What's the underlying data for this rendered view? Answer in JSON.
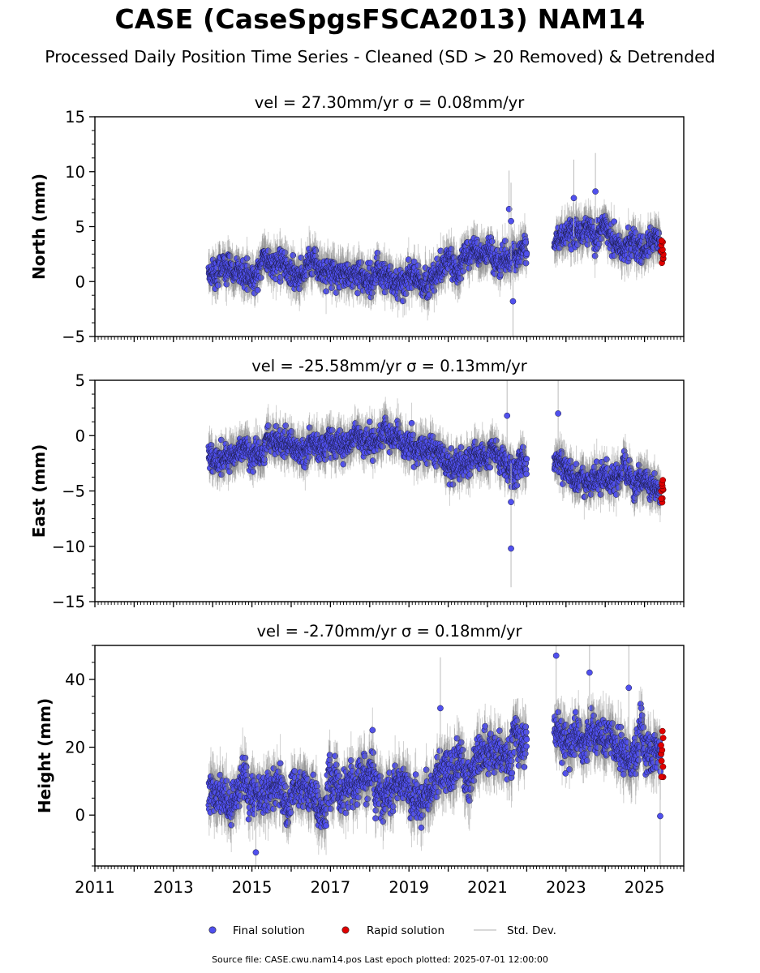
{
  "title": "CASE (CaseSpgsFSCA2013) NAM14",
  "subtitle": "Processed Daily Position Time Series - Cleaned (SD > 20 Removed) & Detrended",
  "footer": "Source file: CASE.cwu.nam14.pos  Last epoch plotted: 2025-07-01 12:00:00",
  "colors": {
    "final": "#5050ee",
    "rapid": "#e00000",
    "stddev": "#bbbbbb"
  },
  "legend": {
    "placement": "bottom-center",
    "items": [
      {
        "label": "Final solution",
        "color": "#5050ee",
        "kind": "marker"
      },
      {
        "label": "Rapid solution",
        "color": "#e00000",
        "kind": "marker"
      },
      {
        "label": "Std. Dev.",
        "color": "#bbbbbb",
        "kind": "line"
      }
    ]
  },
  "chart_data": [
    {
      "type": "scatter",
      "title": "vel = 27.30mm/yr   σ = 0.08mm/yr",
      "ylabel": "North (mm)",
      "xlim": [
        2011,
        2026
      ],
      "ylim": [
        -5,
        15
      ],
      "yticks": [
        -5,
        0,
        5,
        10,
        15
      ],
      "xticks": [
        2011,
        2013,
        2015,
        2017,
        2019,
        2021,
        2023,
        2025
      ],
      "show_xticklabels": false,
      "data_span": [
        2013.9,
        2025.5
      ],
      "gap": [
        2022.0,
        2022.7
      ],
      "trend_x": [
        2013.9,
        2016.5,
        2019.0,
        2019.9,
        2022.0,
        2022.7,
        2023.6,
        2025.5
      ],
      "trend_y": [
        0.8,
        0.5,
        0.4,
        1.5,
        3.0,
        4.0,
        4.5,
        3.0
      ],
      "scatter_sd": 0.9,
      "errbar_sd": 1.4,
      "rapid": {
        "x": 2025.45,
        "y_range": [
          1.6,
          3.8
        ]
      },
      "outliers": [
        [
          2021.55,
          6.6
        ],
        [
          2021.6,
          5.5
        ],
        [
          2021.65,
          -1.8
        ],
        [
          2023.2,
          7.6
        ],
        [
          2023.75,
          8.2
        ]
      ]
    },
    {
      "type": "scatter",
      "title": "vel = -25.58mm/yr   σ = 0.13mm/yr",
      "ylabel": "East (mm)",
      "xlim": [
        2011,
        2026
      ],
      "ylim": [
        -15,
        5
      ],
      "yticks": [
        -15,
        -10,
        -5,
        0,
        5
      ],
      "xticks": [
        2011,
        2013,
        2015,
        2017,
        2019,
        2021,
        2023,
        2025
      ],
      "show_xticklabels": false,
      "data_span": [
        2013.9,
        2025.5
      ],
      "gap": [
        2022.0,
        2022.7
      ],
      "trend_x": [
        2013.9,
        2016.0,
        2018.5,
        2019.7,
        2020.0,
        2022.0,
        2022.7,
        2025.5
      ],
      "trend_y": [
        -1.5,
        -1.0,
        -0.5,
        -1.0,
        -2.8,
        -2.5,
        -2.5,
        -5.0
      ],
      "scatter_sd": 0.9,
      "errbar_sd": 1.4,
      "rapid": {
        "x": 2025.45,
        "y_range": [
          -6.0,
          -4.0
        ]
      },
      "outliers": [
        [
          2021.6,
          -10.2
        ],
        [
          2021.5,
          1.8
        ],
        [
          2022.8,
          2.0
        ],
        [
          2021.6,
          -6.0
        ]
      ]
    },
    {
      "type": "scatter",
      "title": "vel = -2.70mm/yr   σ = 0.18mm/yr",
      "ylabel": "Height (mm)",
      "xlim": [
        2011,
        2026
      ],
      "ylim": [
        -15,
        50
      ],
      "yticks": [
        0,
        20,
        40
      ],
      "xticks": [
        2011,
        2013,
        2015,
        2017,
        2019,
        2021,
        2023,
        2025
      ],
      "show_xticklabels": true,
      "data_span": [
        2013.9,
        2025.5
      ],
      "gap": [
        2022.0,
        2022.7
      ],
      "trend_x": [
        2013.9,
        2016.0,
        2018.5,
        2019.3,
        2020.0,
        2022.0,
        2022.7,
        2025.5
      ],
      "trend_y": [
        5.0,
        9.0,
        7.0,
        4.0,
        14.0,
        20.0,
        22.0,
        18.0
      ],
      "scatter_sd": 4.5,
      "errbar_sd": 6.0,
      "rapid": {
        "x": 2025.45,
        "y_range": [
          11.0,
          24.0
        ]
      },
      "outliers": [
        [
          2022.75,
          47.0
        ],
        [
          2023.6,
          42.0
        ],
        [
          2015.1,
          -11.0
        ],
        [
          2019.8,
          31.5
        ],
        [
          2024.6,
          37.5
        ],
        [
          2025.4,
          -0.3
        ]
      ]
    }
  ]
}
